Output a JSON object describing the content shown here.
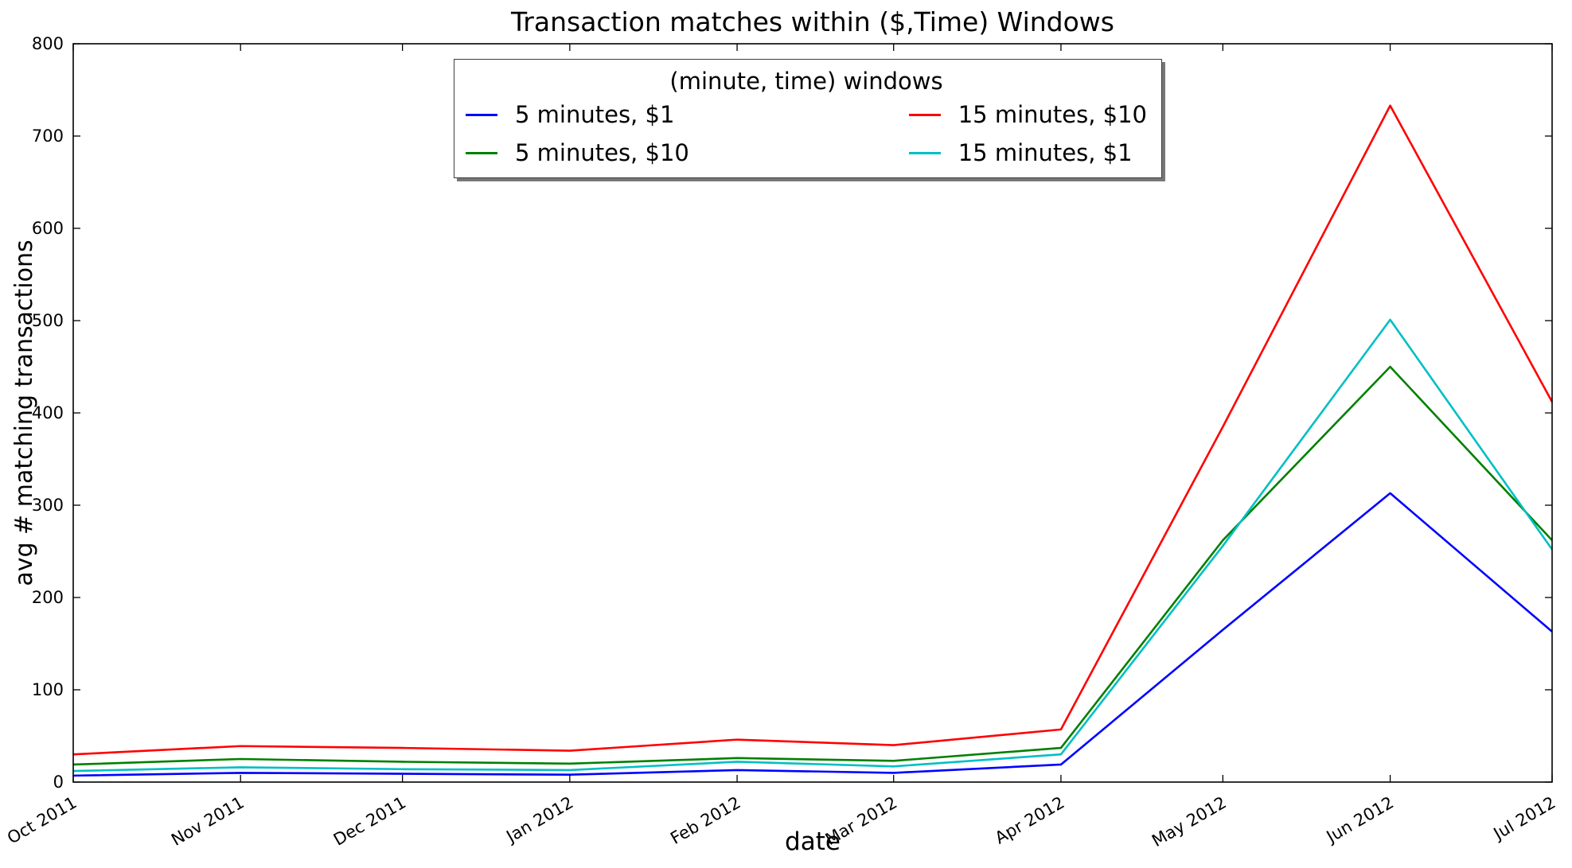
{
  "figure": {
    "title": "Transaction matches within ($,Time) Windows",
    "background": "#ffffff"
  },
  "axes": {
    "xlabel": "date",
    "ylabel": "avg # matching transactions",
    "ylim": [
      0,
      800
    ],
    "yticks": [
      0,
      100,
      200,
      300,
      400,
      500,
      600,
      700,
      800
    ],
    "tick_color": "#000000",
    "spine_color": "#000000"
  },
  "legend": {
    "title": "(minute, time) windows",
    "columns": 2,
    "position": "upper center"
  },
  "chart_data": {
    "type": "line",
    "title": "Transaction matches within ($,Time) Windows",
    "xlabel": "date",
    "ylabel": "avg # matching transactions",
    "ylim": [
      0,
      800
    ],
    "grid": false,
    "legend_position": "upper center",
    "x": [
      "Oct 2011",
      "Nov 2011",
      "Dec 2011",
      "Jan 2012",
      "Feb 2012",
      "Mar 2012",
      "Apr 2012",
      "May 2012",
      "Jun 2012",
      "Jul 2012"
    ],
    "x_days": [
      0,
      31,
      61,
      92,
      123,
      152,
      183,
      213,
      244,
      274
    ],
    "series": [
      {
        "name": "5 minutes, $1",
        "color": "#0000ff",
        "values": [
          7,
          10,
          9,
          8,
          13,
          10,
          19,
          165,
          313,
          163
        ]
      },
      {
        "name": "5 minutes, $10",
        "color": "#008000",
        "values": [
          19,
          25,
          22,
          20,
          26,
          23,
          37,
          262,
          450,
          262
        ]
      },
      {
        "name": "15 minutes, $10",
        "color": "#ff0000",
        "values": [
          30,
          39,
          37,
          34,
          46,
          40,
          57,
          385,
          733,
          412
        ]
      },
      {
        "name": "15 minutes, $1",
        "color": "#00bfc4",
        "values": [
          12,
          16,
          14,
          13,
          22,
          17,
          30,
          256,
          501,
          252
        ]
      }
    ]
  }
}
